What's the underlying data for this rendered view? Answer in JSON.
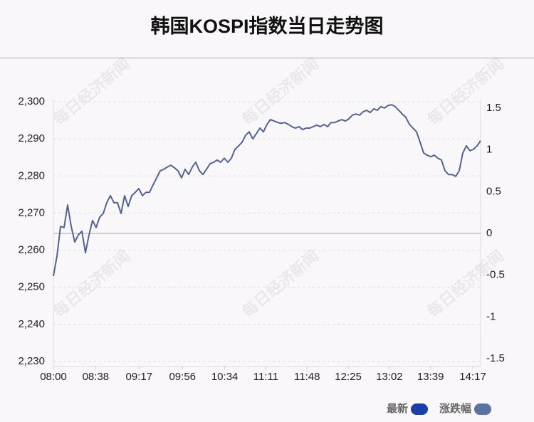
{
  "chart_data": {
    "type": "line",
    "title": "韩国KOSPI指数当日走势图",
    "watermark": "每日经济新闻",
    "x": [
      0,
      3.2,
      6.4,
      9.6,
      12.8,
      16,
      19.2,
      22.4,
      25.6,
      28.8,
      32,
      35.2,
      38.4,
      41.6,
      44.8,
      48,
      51.2,
      54.4,
      57.6,
      60.8,
      64,
      67.2,
      70.4,
      73.6,
      76.8,
      80,
      83.2,
      86.4,
      89.6,
      92.8,
      96,
      99.2,
      102.4,
      105.6,
      108.8,
      112,
      115.2,
      118.4,
      121.6,
      124.8,
      128,
      131.2,
      134.4,
      137.6,
      140.8,
      144,
      147.2,
      150.4,
      153.6,
      156.8,
      160,
      163.2,
      166.4,
      169.6,
      172.8,
      176,
      179.2,
      182.4,
      185.6,
      188.8,
      192,
      195.2,
      198.4,
      201.6,
      204.8,
      208,
      211.2,
      214.4,
      217.6,
      220.8,
      224,
      227.2,
      230.4,
      233.6,
      236.8,
      240,
      243.2,
      246.4,
      249.6,
      252.8,
      256,
      259.2,
      262.4,
      265.6,
      268.8,
      272,
      275.2,
      278.4,
      281.6,
      284.8,
      288,
      291.2,
      294.4,
      297.6,
      300.8,
      304,
      307.2,
      310.4,
      313.6,
      316.8,
      320,
      323.2,
      326.4,
      329.6,
      332.8,
      336,
      339.2,
      342.4,
      345.6,
      348.8,
      352,
      355.2,
      358.4,
      361.6,
      364.8,
      368,
      371.2,
      374.4,
      377.6,
      380.8,
      384
    ],
    "series": [
      {
        "name": "最新",
        "color": "#1a3fa8",
        "line_color": "#52648f",
        "values": [
          2253.0,
          2258.4,
          2266.4,
          2266.1,
          2272.2,
          2266.4,
          2262.2,
          2264.1,
          2265.1,
          2259.3,
          2264.1,
          2268.0,
          2266.1,
          2268.9,
          2269.9,
          2272.8,
          2274.7,
          2272.8,
          2272.8,
          2269.9,
          2274.7,
          2271.8,
          2274.7,
          2275.6,
          2276.6,
          2274.7,
          2275.6,
          2275.6,
          2277.6,
          2279.5,
          2281.4,
          2281.8,
          2282.4,
          2282.9,
          2282.2,
          2281.4,
          2279.5,
          2281.8,
          2280.4,
          2282.4,
          2283.7,
          2281.4,
          2280.4,
          2281.8,
          2283.3,
          2283.7,
          2284.3,
          2283.7,
          2284.8,
          2283.7,
          2284.8,
          2287.2,
          2288.1,
          2289.1,
          2291.0,
          2291.9,
          2290.0,
          2291.4,
          2292.9,
          2291.9,
          2293.9,
          2295.2,
          2294.8,
          2294.4,
          2294.2,
          2294.4,
          2293.9,
          2293.3,
          2292.9,
          2293.3,
          2292.5,
          2292.9,
          2292.9,
          2293.3,
          2293.7,
          2293.3,
          2293.9,
          2293.3,
          2294.4,
          2294.4,
          2294.8,
          2295.2,
          2294.8,
          2295.4,
          2296.4,
          2296.7,
          2296.4,
          2297.3,
          2297.7,
          2297.1,
          2298.1,
          2297.7,
          2298.7,
          2298.3,
          2299.0,
          2299.2,
          2298.7,
          2297.7,
          2296.7,
          2295.8,
          2293.9,
          2292.9,
          2291.9,
          2289.1,
          2286.2,
          2285.6,
          2285.2,
          2285.6,
          2284.8,
          2284.3,
          2281.4,
          2280.4,
          2280.4,
          2279.9,
          2281.4,
          2286.2,
          2288.1,
          2286.8,
          2287.2,
          2288.1,
          2289.5
        ]
      }
    ],
    "legend": [
      {
        "name": "最新",
        "color": "#1a3fa8"
      },
      {
        "name": "涨跌幅",
        "color": "#5d72a0"
      }
    ],
    "xlim": [
      0,
      384
    ],
    "xticks": [
      {
        "value": 0,
        "label": "08:00"
      },
      {
        "value": 38,
        "label": "08:38"
      },
      {
        "value": 77,
        "label": "09:17"
      },
      {
        "value": 116,
        "label": "09:56"
      },
      {
        "value": 154,
        "label": "10:34"
      },
      {
        "value": 191,
        "label": "11:11"
      },
      {
        "value": 228,
        "label": "11:48"
      },
      {
        "value": 265,
        "label": "12:25"
      },
      {
        "value": 302,
        "label": "13:02"
      },
      {
        "value": 339,
        "label": "13:39"
      },
      {
        "value": 377,
        "label": "14:17"
      }
    ],
    "ylim": [
      2230,
      2300
    ],
    "yticks": [
      {
        "value": 2230,
        "label": "2,230"
      },
      {
        "value": 2240,
        "label": "2,240"
      },
      {
        "value": 2250,
        "label": "2,250"
      },
      {
        "value": 2260,
        "label": "2,260"
      },
      {
        "value": 2270,
        "label": "2,270"
      },
      {
        "value": 2280,
        "label": "2,280"
      },
      {
        "value": 2290,
        "label": "2,290"
      },
      {
        "value": 2300,
        "label": "2,300"
      }
    ],
    "y2lim": [
      -1.534,
      1.577
    ],
    "y2ticks": [
      1.5,
      1,
      0.5,
      0,
      -0.5,
      -1,
      -1.5
    ],
    "grid": true,
    "zero_line": true,
    "legend_position": "bottom-right"
  }
}
